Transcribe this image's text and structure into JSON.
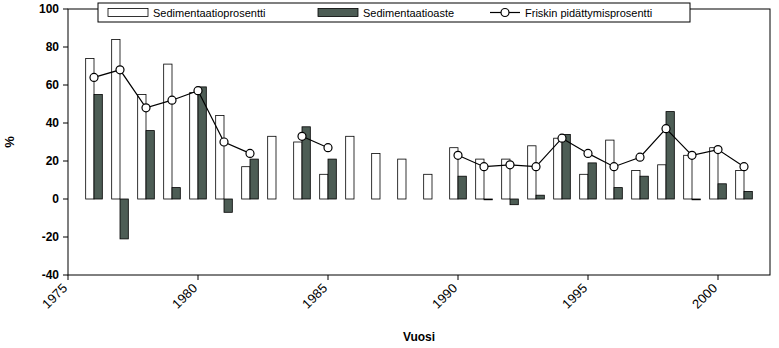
{
  "chart_data": {
    "type": "bar",
    "x_label": "Vuosi",
    "y_label": "%",
    "x": [
      1976,
      1977,
      1978,
      1979,
      1980,
      1981,
      1982,
      1983,
      1984,
      1985,
      1986,
      1987,
      1988,
      1989,
      1990,
      1991,
      1992,
      1993,
      1994,
      1995,
      1996,
      1997,
      1998,
      1999,
      2000,
      2001
    ],
    "xlim": [
      1975,
      2002
    ],
    "xticks": [
      1975,
      1980,
      1985,
      1990,
      1995,
      2000
    ],
    "ylim": [
      -40,
      100
    ],
    "yticks": [
      -40,
      -20,
      0,
      20,
      40,
      60,
      80,
      100
    ],
    "legend": "top",
    "series": [
      {
        "name": "Sedimentaatioprosentti",
        "type": "bar",
        "color": "#ffffff",
        "values": [
          74,
          84,
          55,
          71,
          56,
          44,
          17,
          33,
          30,
          13,
          33,
          24,
          21,
          13,
          27,
          21,
          21,
          28,
          32,
          13,
          31,
          15,
          18,
          23,
          27,
          15
        ]
      },
      {
        "name": "Sedimentaatioaste",
        "type": "bar",
        "color": "#4d5d55",
        "values": [
          55,
          -21,
          36,
          6,
          59,
          -7,
          21,
          null,
          38,
          21,
          null,
          null,
          null,
          null,
          12,
          0,
          -3,
          2,
          34,
          19,
          6,
          12,
          46,
          0,
          8,
          4
        ]
      },
      {
        "name": "Friskin pidättymisprosentti",
        "type": "line",
        "color": "#000000",
        "marker": "circle",
        "values": [
          64,
          68,
          48,
          52,
          57,
          30,
          24,
          null,
          33,
          27,
          null,
          null,
          null,
          null,
          23,
          17,
          18,
          17,
          32,
          24,
          17,
          22,
          37,
          23,
          26,
          17
        ]
      }
    ]
  }
}
